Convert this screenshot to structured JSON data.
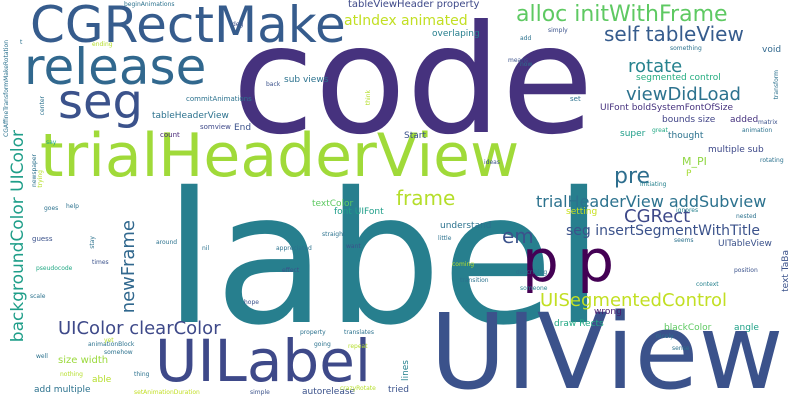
{
  "words": [
    {
      "text": "code",
      "color": "#46327e"
    },
    {
      "text": "label",
      "color": "#277f8e"
    },
    {
      "text": "UIView",
      "color": "#3b528b"
    },
    {
      "text": "trialHeaderView",
      "color": "#a0da39"
    },
    {
      "text": "CGRectMake",
      "color": "#365c8d"
    },
    {
      "text": "release",
      "color": "#31688e"
    },
    {
      "text": "UILabel",
      "color": "#3e4989"
    },
    {
      "text": "p p",
      "color": "#440154"
    },
    {
      "text": "seg",
      "color": "#3b528b"
    },
    {
      "text": "alloc initWithFrame",
      "color": "#5ec962"
    },
    {
      "text": "self tableView",
      "color": "#365c8d"
    },
    {
      "text": "rotate",
      "color": "#26828e"
    },
    {
      "text": "viewDidLoad",
      "color": "#2c728e"
    },
    {
      "text": "pre",
      "color": "#2e6e8e"
    },
    {
      "text": "frame",
      "color": "#b5de2b"
    },
    {
      "text": "trialHeaderView addSubview",
      "color": "#2c728e"
    },
    {
      "text": "CGRect",
      "color": "#3e4989"
    },
    {
      "text": "em",
      "color": "#3b528b"
    },
    {
      "text": "seg insertSegmentWithTitle",
      "color": "#3b528b"
    },
    {
      "text": "UISegmentedControl",
      "color": "#c2df23"
    },
    {
      "text": "UIColor clearColor",
      "color": "#3e4989"
    },
    {
      "text": "backgroundColor UIColor",
      "color": "#1f9e89"
    },
    {
      "text": "newFrame",
      "color": "#31688e"
    },
    {
      "text": "atIndex animated",
      "color": "#c2df23"
    },
    {
      "text": "tableViewHeader property",
      "color": "#3e4989"
    },
    {
      "text": "overlaping",
      "color": "#277f8e"
    },
    {
      "text": "sub views",
      "color": "#2c728e"
    },
    {
      "text": "segmented control",
      "color": "#26ad81"
    },
    {
      "text": "UIFont boldSystemFontOfSize",
      "color": "#46327e"
    },
    {
      "text": "bounds size",
      "color": "#414487"
    },
    {
      "text": "added",
      "color": "#46327e"
    },
    {
      "text": "End",
      "color": "#3b528b"
    },
    {
      "text": "Start",
      "color": "#3b528b"
    },
    {
      "text": "thought",
      "color": "#2c728e"
    },
    {
      "text": "multiple sub",
      "color": "#3e4989"
    },
    {
      "text": "M_PI",
      "color": "#90d743"
    },
    {
      "text": "P",
      "color": "#a5db36"
    },
    {
      "text": "textColor",
      "color": "#5ec962"
    },
    {
      "text": "font UIFont",
      "color": "#1f9e89"
    },
    {
      "text": "setting",
      "color": "#c8e020"
    },
    {
      "text": "understand",
      "color": "#2c728e"
    },
    {
      "text": "wrong",
      "color": "#481a6c"
    },
    {
      "text": "draw Rects",
      "color": "#22a884"
    },
    {
      "text": "size width",
      "color": "#9bd93c"
    },
    {
      "text": "able",
      "color": "#b5de2b"
    },
    {
      "text": "add multiple",
      "color": "#2c728e"
    },
    {
      "text": "autorelease",
      "color": "#3b528b"
    },
    {
      "text": "lines",
      "color": "#26828e"
    },
    {
      "text": "blackColor",
      "color": "#5ec962"
    },
    {
      "text": "angle",
      "color": "#1fa187"
    },
    {
      "text": "UITableView",
      "color": "#3b528b"
    },
    {
      "text": "text TaBa",
      "color": "#3b528b"
    },
    {
      "text": "super",
      "color": "#1f9e89"
    },
    {
      "text": "void",
      "color": "#31688e"
    },
    {
      "text": "tableHeaderView",
      "color": "#2c728e"
    },
    {
      "text": "commitAnimations",
      "color": "#2c728e"
    },
    {
      "text": "somview",
      "color": "#3e4989"
    },
    {
      "text": "count",
      "color": "#482878"
    },
    {
      "text": "set",
      "color": "#2c728e"
    },
    {
      "text": "means",
      "color": "#3b528b"
    },
    {
      "text": "now",
      "color": "#2c728e"
    },
    {
      "text": "add",
      "color": "#2c728e"
    },
    {
      "text": "simply",
      "color": "#3b528b"
    },
    {
      "text": "something",
      "color": "#2c728e"
    },
    {
      "text": "deg",
      "color": "#3b528b"
    },
    {
      "text": "back",
      "color": "#3b528b"
    },
    {
      "text": "think",
      "color": "#b5de2b"
    },
    {
      "text": "great",
      "color": "#22a884"
    },
    {
      "text": "ideas",
      "color": "#3b528b"
    },
    {
      "text": "initiating",
      "color": "#26828e"
    },
    {
      "text": "ignores",
      "color": "#26828e"
    },
    {
      "text": "nested",
      "color": "#2c728e"
    },
    {
      "text": "rotating",
      "color": "#2c728e"
    },
    {
      "text": "animation",
      "color": "#2c728e"
    },
    {
      "text": "matrix",
      "color": "#3b528b"
    },
    {
      "text": "transform",
      "color": "#2c728e"
    },
    {
      "text": "seems",
      "color": "#2c728e"
    },
    {
      "text": "position",
      "color": "#3b528b"
    },
    {
      "text": "context",
      "color": "#26828e"
    },
    {
      "text": "sense",
      "color": "#2c728e"
    },
    {
      "text": "nicely",
      "color": "#2c728e"
    },
    {
      "text": "describing",
      "color": "#2c728e"
    },
    {
      "text": "someone",
      "color": "#26828e"
    },
    {
      "text": "transition",
      "color": "#2c728e"
    },
    {
      "text": "coming",
      "color": "#b5de2b"
    },
    {
      "text": "effect",
      "color": "#3b528b"
    },
    {
      "text": "hope",
      "color": "#3b528b"
    },
    {
      "text": "property",
      "color": "#2c728e"
    },
    {
      "text": "going",
      "color": "#2c728e"
    },
    {
      "text": "translates",
      "color": "#2c728e"
    },
    {
      "text": "repeat",
      "color": "#b5de2b"
    },
    {
      "text": "crazyRotate",
      "color": "#b5de2b"
    },
    {
      "text": "tried",
      "color": "#3b528b"
    },
    {
      "text": "simple",
      "color": "#3b528b"
    },
    {
      "text": "setAnimationDuration",
      "color": "#c2df23"
    },
    {
      "text": "thing",
      "color": "#2c728e"
    },
    {
      "text": "nothing",
      "color": "#b5de2b"
    },
    {
      "text": "somehow",
      "color": "#2c728e"
    },
    {
      "text": "animationBlock",
      "color": "#2c728e"
    },
    {
      "text": "well",
      "color": "#2c728e"
    },
    {
      "text": "yet",
      "color": "#b5de2b"
    },
    {
      "text": "scale",
      "color": "#2c728e"
    },
    {
      "text": "pseudocode",
      "color": "#22a884"
    },
    {
      "text": "guess",
      "color": "#3b528b"
    },
    {
      "text": "help",
      "color": "#2c728e"
    },
    {
      "text": "goes",
      "color": "#2c728e"
    },
    {
      "text": "newspaper",
      "color": "#2c728e"
    },
    {
      "text": "trying",
      "color": "#b5de2b"
    },
    {
      "text": "say",
      "color": "#22a884"
    },
    {
      "text": "center",
      "color": "#2c728e"
    },
    {
      "text": "CGAffineTransformMakeRotation",
      "color": "#2c728e"
    },
    {
      "text": "ending",
      "color": "#b5de2b"
    },
    {
      "text": "beginAnimations",
      "color": "#2c728e"
    },
    {
      "text": "around",
      "color": "#2c728e"
    },
    {
      "text": "nil",
      "color": "#2c728e"
    },
    {
      "text": "appreciated",
      "color": "#2c728e"
    },
    {
      "text": "straight",
      "color": "#2c728e"
    },
    {
      "text": "want",
      "color": "#3b528b"
    },
    {
      "text": "little",
      "color": "#2c728e"
    },
    {
      "text": "stay",
      "color": "#2c728e"
    },
    {
      "text": "times",
      "color": "#3b528b"
    },
    {
      "text": "t",
      "color": "#2c728e"
    }
  ]
}
